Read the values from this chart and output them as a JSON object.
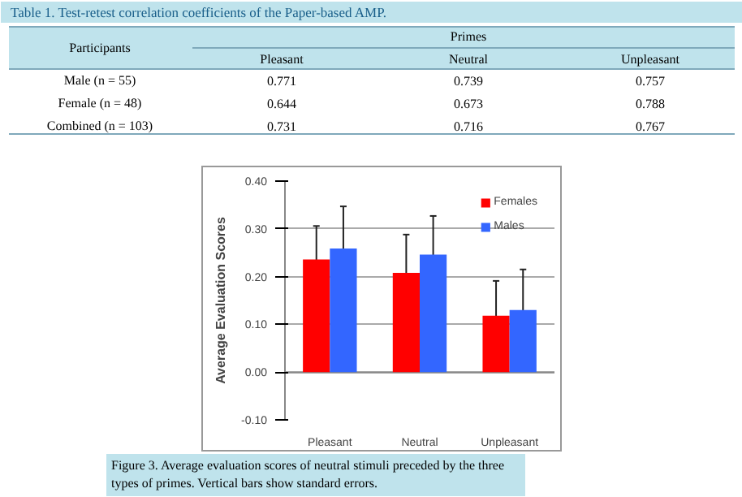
{
  "chart_data": [
    {
      "type": "other",
      "title": "Table 1. Test-retest correlation coefficients of the Paper-based AMP.",
      "annotations": [
        "Participants",
        "Primes",
        "0.771",
        "0.739",
        "0.757",
        "0.644",
        "0.673",
        "0.788",
        "0.731",
        "0.716",
        "0.767"
      ],
      "categories": [
        "Pleasant",
        "Neutral",
        "Unpleasant"
      ],
      "y_categories": [
        "Male (n = 55)",
        "Female (n = 48)",
        "Combined (n = 103)"
      ]
    },
    {
      "type": "bar",
      "ylabel": "Average Evaluation Scores",
      "categories": [
        "Pleasant",
        "Neutral",
        "Unpleasant"
      ],
      "series": [
        {
          "name": "Females",
          "color": "#ff0000",
          "values": [
            0.236,
            0.208,
            0.118
          ],
          "errors": [
            0.07,
            0.08,
            0.073
          ]
        },
        {
          "name": "Males",
          "color": "#3366ff",
          "values": [
            0.259,
            0.246,
            0.13
          ],
          "errors": [
            0.088,
            0.081,
            0.085
          ]
        }
      ],
      "ylim": [
        -0.1,
        0.4
      ],
      "yticks": [
        {
          "value": -0.1,
          "label": "-0.10"
        },
        {
          "value": 0,
          "label": "0.00"
        },
        {
          "value": 0.1,
          "label": "0.10"
        },
        {
          "value": 0.2,
          "label": "0.20"
        },
        {
          "value": 0.3,
          "label": "0.30"
        },
        {
          "value": 0.4,
          "label": "0.40"
        }
      ],
      "grid": "y",
      "legend": "top right",
      "annotations": [
        "Figure 3. Average evaluation scores of neutral stimuli preceded by the three types of primes. Vertical bars show standard errors."
      ]
    }
  ]
}
